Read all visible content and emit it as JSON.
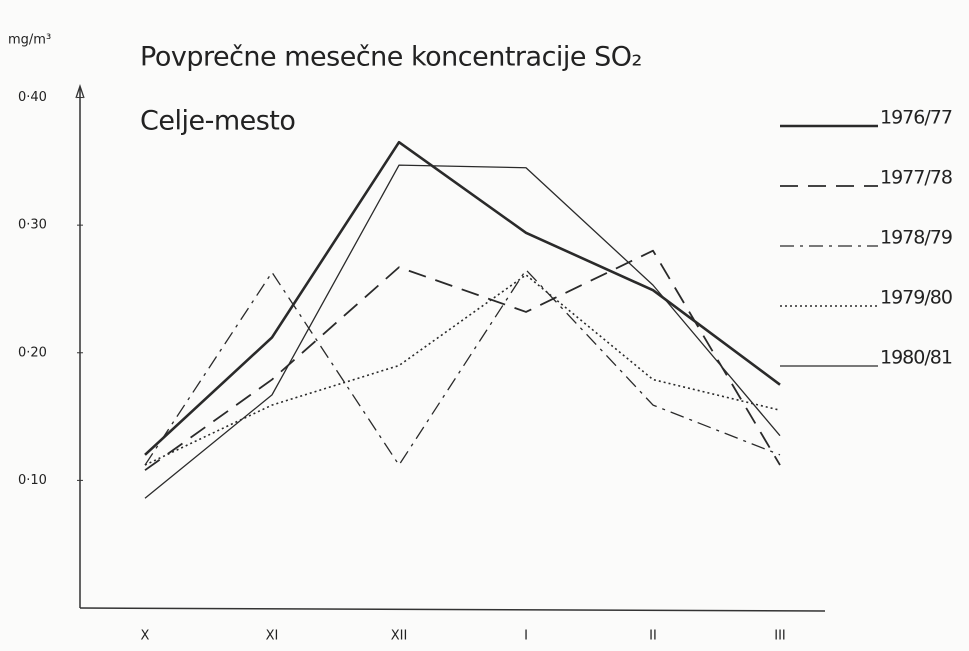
{
  "chart_data": {
    "type": "line",
    "title": "Povprečne mesečne koncentracije SO₂",
    "subtitle": "Celje-mesto",
    "y_label": "mg/m³",
    "categories": [
      "X",
      "XI",
      "XII",
      "I",
      "II",
      "III"
    ],
    "ylim": [
      0,
      0.42
    ],
    "yticks": [
      {
        "value": 0.1,
        "label": "0·10"
      },
      {
        "value": 0.2,
        "label": "0·20"
      },
      {
        "value": 0.3,
        "label": "0·30"
      },
      {
        "value": 0.4,
        "label": "0·40"
      }
    ],
    "grid": false,
    "legend": "right",
    "series": [
      {
        "name": "1976/77",
        "color": "#2a2a2a",
        "style": "solid",
        "width": 2.6,
        "values": [
          0.12,
          0.212,
          0.365,
          0.294,
          0.249,
          0.175
        ]
      },
      {
        "name": "1977/78",
        "color": "#2a2a2a",
        "style": "dashed",
        "width": 1.8,
        "values": [
          0.108,
          0.179,
          0.267,
          0.232,
          0.28,
          0.112
        ]
      },
      {
        "name": "1978/79",
        "color": "#2a2a2a",
        "style": "dashdot",
        "width": 1.3,
        "values": [
          0.112,
          0.263,
          0.112,
          0.265,
          0.159,
          0.12
        ]
      },
      {
        "name": "1979/80",
        "color": "#2a2a2a",
        "style": "dotted",
        "width": 1.6,
        "values": [
          0.112,
          0.159,
          0.19,
          0.261,
          0.179,
          0.155
        ]
      },
      {
        "name": "1980/81",
        "color": "#2a2a2a",
        "style": "solid",
        "width": 1.3,
        "values": [
          0.086,
          0.167,
          0.347,
          0.345,
          0.253,
          0.135
        ]
      }
    ]
  }
}
